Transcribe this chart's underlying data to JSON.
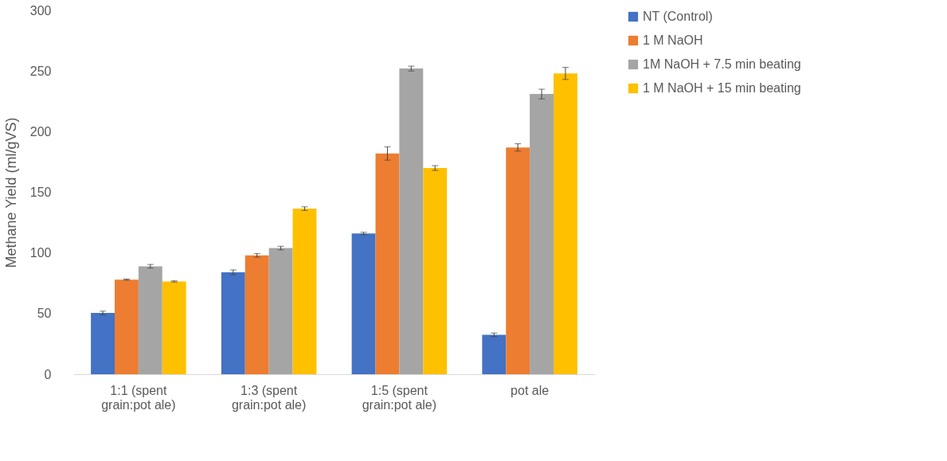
{
  "chart_data": {
    "type": "bar",
    "ylabel": "Methane Yield (ml/gVS)",
    "categories": [
      "1:1 (spent grain:pot ale)",
      "1:3 (spent grain:pot ale)",
      "1:5 (spent grain:pot ale)",
      "pot ale"
    ],
    "series": [
      {
        "name": "NT (Control)",
        "color": "#4472c4",
        "values": [
          50.5,
          84,
          116,
          32.5
        ],
        "errors": [
          1.5,
          2,
          1,
          1.5
        ]
      },
      {
        "name": "1 M NaOH",
        "color": "#ed7d31",
        "values": [
          78,
          98,
          182,
          187
        ],
        "errors": [
          0.5,
          1.5,
          5.5,
          3
        ]
      },
      {
        "name": "1M NaOH + 7.5 min beating",
        "color": "#a5a5a5",
        "values": [
          89,
          104,
          252,
          231
        ],
        "errors": [
          1.5,
          1.5,
          2,
          4
        ]
      },
      {
        "name": "1 M NaOH + 15 min beating",
        "color": "#ffc000",
        "values": [
          76.5,
          136.5,
          170,
          248
        ],
        "errors": [
          0.5,
          1.5,
          2,
          5
        ]
      }
    ],
    "ylim": [
      0,
      300
    ],
    "yticks": [
      0,
      50,
      100,
      150,
      200,
      250,
      300
    ],
    "grid": false,
    "legend": "right"
  }
}
